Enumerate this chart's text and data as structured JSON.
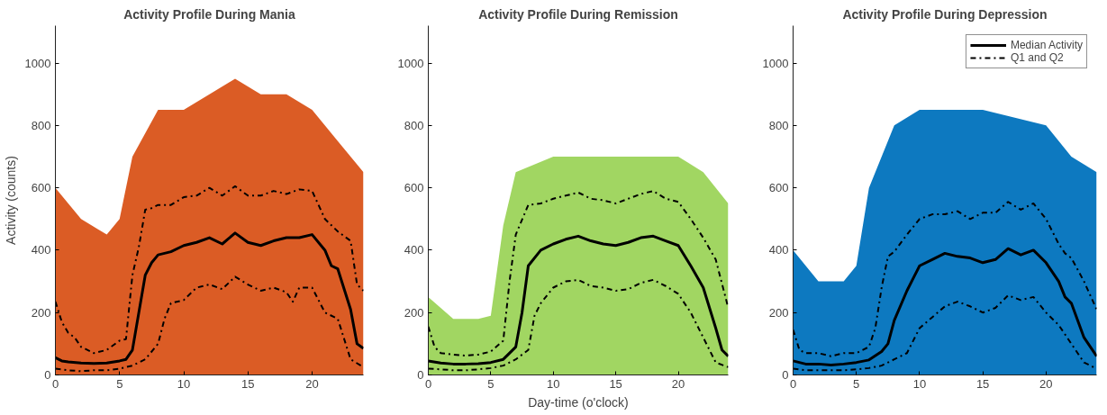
{
  "chart_data": [
    {
      "type": "line",
      "title": "Activity Profile During Mania",
      "ylabel": "Activity (counts)",
      "xlim": [
        0,
        24
      ],
      "xticks": [
        0,
        5,
        10,
        15,
        20
      ],
      "ylim": [
        0,
        1120
      ],
      "yticks": [
        0,
        200,
        400,
        600,
        800,
        1000
      ],
      "grid": false,
      "legend": false,
      "series": [
        {
          "type": "area",
          "color": "#d95319",
          "x": [
            0,
            2,
            4,
            5,
            6,
            8,
            10,
            12,
            14,
            16,
            18,
            20,
            22,
            24
          ],
          "values": [
            600,
            500,
            450,
            500,
            700,
            850,
            850,
            900,
            950,
            900,
            900,
            850,
            750,
            650
          ]
        },
        {
          "color": "#000000",
          "line_style": "solid",
          "x": [
            0,
            0.5,
            1,
            2,
            3,
            4,
            5,
            5.5,
            6,
            6.5,
            7,
            7.5,
            8,
            9,
            10,
            11,
            12,
            13,
            14,
            15,
            16,
            17,
            18,
            19,
            20,
            21,
            21.5,
            22,
            23,
            23.5,
            24
          ],
          "values": [
            55,
            45,
            42,
            38,
            37,
            38,
            45,
            50,
            80,
            200,
            320,
            360,
            385,
            395,
            415,
            425,
            440,
            420,
            455,
            425,
            415,
            430,
            440,
            440,
            450,
            400,
            350,
            340,
            210,
            100,
            85
          ]
        },
        {
          "color": "#000000",
          "line_style": "dashed",
          "x": [
            0,
            0.5,
            1,
            1.5,
            2,
            3,
            4,
            5,
            5.5,
            6,
            6.5,
            7,
            7.5,
            8,
            9,
            10,
            11,
            12,
            13,
            14,
            15,
            16,
            17,
            18,
            19,
            20,
            21,
            22,
            23,
            23.5,
            24
          ],
          "values": [
            235,
            170,
            135,
            120,
            90,
            70,
            80,
            110,
            115,
            320,
            410,
            530,
            535,
            545,
            545,
            570,
            575,
            600,
            575,
            605,
            575,
            575,
            590,
            580,
            595,
            590,
            500,
            460,
            430,
            290,
            270
          ]
        },
        {
          "color": "#000000",
          "line_style": "dashed",
          "x": [
            0,
            1,
            2,
            3,
            4,
            5,
            6,
            7,
            8,
            8.5,
            9,
            10,
            11,
            12,
            13,
            14,
            15,
            16,
            17,
            18,
            18.5,
            19,
            20,
            21,
            22,
            23,
            24
          ],
          "values": [
            20,
            15,
            12,
            15,
            15,
            20,
            30,
            50,
            100,
            180,
            230,
            240,
            280,
            290,
            275,
            315,
            290,
            270,
            280,
            265,
            235,
            280,
            280,
            200,
            180,
            50,
            25
          ]
        }
      ]
    },
    {
      "type": "line",
      "title": "Activity Profile During Remission",
      "xlabel": "Day-time (o'clock)",
      "xlim": [
        0,
        24
      ],
      "xticks": [
        0,
        5,
        10,
        15,
        20
      ],
      "ylim": [
        0,
        1120
      ],
      "yticks": [
        0,
        200,
        400,
        600,
        800,
        1000
      ],
      "grid": false,
      "legend": false,
      "series": [
        {
          "type": "area",
          "color": "#9cd45a",
          "x": [
            0,
            2,
            4,
            5,
            6,
            7,
            10,
            15,
            20,
            22,
            24
          ],
          "values": [
            250,
            180,
            180,
            190,
            480,
            650,
            700,
            700,
            700,
            650,
            550
          ]
        },
        {
          "color": "#000000",
          "line_style": "solid",
          "x": [
            0,
            1,
            2,
            3,
            4,
            5,
            6,
            7,
            7.5,
            8,
            9,
            10,
            11,
            12,
            13,
            14,
            15,
            16,
            17,
            18,
            19,
            20,
            21,
            22,
            23,
            23.5,
            24
          ],
          "values": [
            45,
            38,
            35,
            35,
            36,
            40,
            50,
            90,
            200,
            350,
            400,
            420,
            435,
            445,
            430,
            420,
            415,
            425,
            440,
            445,
            430,
            415,
            350,
            280,
            150,
            80,
            60
          ]
        },
        {
          "color": "#000000",
          "line_style": "dashed",
          "x": [
            0,
            0.5,
            1,
            2,
            3,
            4,
            5,
            6,
            6.5,
            7,
            8,
            9,
            10,
            11,
            12,
            13,
            14,
            15,
            16,
            17,
            18,
            19,
            20,
            21,
            22,
            23,
            24
          ],
          "values": [
            155,
            90,
            70,
            65,
            62,
            65,
            75,
            110,
            300,
            450,
            545,
            550,
            565,
            575,
            585,
            565,
            560,
            550,
            565,
            580,
            590,
            565,
            555,
            500,
            440,
            370,
            215
          ]
        },
        {
          "color": "#000000",
          "line_style": "dashed",
          "x": [
            0,
            1,
            2,
            3,
            4,
            5,
            6,
            7,
            8,
            8.5,
            9,
            10,
            11,
            12,
            13,
            14,
            15,
            16,
            17,
            18,
            19,
            20,
            21,
            22,
            23,
            24
          ],
          "values": [
            20,
            18,
            15,
            15,
            18,
            22,
            30,
            50,
            80,
            190,
            230,
            280,
            300,
            305,
            285,
            280,
            270,
            275,
            295,
            305,
            285,
            260,
            200,
            120,
            40,
            25
          ]
        }
      ]
    },
    {
      "type": "line",
      "title": "Activity Profile During Depression",
      "xlim": [
        0,
        24
      ],
      "xticks": [
        0,
        5,
        10,
        15,
        20
      ],
      "ylim": [
        0,
        1120
      ],
      "yticks": [
        0,
        200,
        400,
        600,
        800,
        1000
      ],
      "grid": false,
      "legend": "top right",
      "series": [
        {
          "type": "area",
          "color": "#0072bd",
          "x": [
            0,
            2,
            4,
            5,
            6,
            8,
            10,
            15,
            20,
            22,
            24
          ],
          "values": [
            400,
            300,
            300,
            350,
            600,
            800,
            850,
            850,
            800,
            700,
            650
          ]
        },
        {
          "name": "Median Activity",
          "color": "#000000",
          "line_style": "solid",
          "x": [
            0,
            1,
            2,
            3,
            4,
            5,
            6,
            7,
            7.5,
            8,
            9,
            10,
            11,
            12,
            13,
            14,
            15,
            16,
            17,
            18,
            19,
            20,
            21,
            21.5,
            22,
            23,
            24
          ],
          "values": [
            45,
            35,
            35,
            32,
            35,
            40,
            48,
            75,
            100,
            175,
            270,
            350,
            370,
            390,
            380,
            375,
            360,
            370,
            405,
            385,
            400,
            360,
            300,
            250,
            230,
            120,
            60
          ]
        },
        {
          "name": "Q1 and Q2",
          "color": "#000000",
          "line_style": "dashed",
          "x": [
            0,
            0.5,
            1,
            2,
            3,
            4,
            5,
            6,
            6.5,
            7,
            7.5,
            8,
            9,
            10,
            11,
            12,
            13,
            14,
            15,
            16,
            17,
            18,
            19,
            20,
            21,
            21.5,
            22,
            23,
            24
          ],
          "values": [
            145,
            80,
            70,
            70,
            60,
            70,
            70,
            90,
            150,
            280,
            380,
            395,
            450,
            500,
            515,
            515,
            525,
            500,
            520,
            520,
            555,
            530,
            550,
            500,
            420,
            390,
            375,
            300,
            210
          ]
        },
        {
          "color": "#000000",
          "line_style": "dashed",
          "x": [
            0,
            1,
            2,
            3,
            4,
            5,
            6,
            7,
            8,
            9,
            10,
            11,
            12,
            13,
            14,
            15,
            16,
            17,
            18,
            19,
            20,
            21,
            22,
            23,
            24
          ],
          "values": [
            20,
            15,
            15,
            15,
            15,
            18,
            22,
            30,
            50,
            70,
            150,
            185,
            220,
            235,
            220,
            200,
            215,
            255,
            240,
            250,
            200,
            160,
            100,
            40,
            20
          ]
        }
      ]
    }
  ]
}
